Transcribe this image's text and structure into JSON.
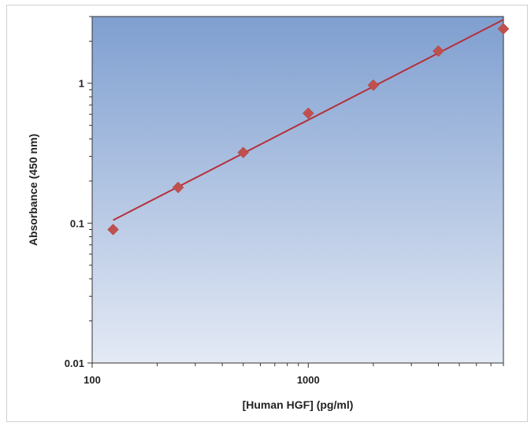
{
  "chart_data": {
    "type": "scatter",
    "xscale": "log",
    "yscale": "log",
    "xlabel": "[Human HGF] (pg/ml)",
    "ylabel": "Absorbance (450 nm)",
    "xlim": [
      100,
      8000
    ],
    "ylim": [
      0.01,
      3
    ],
    "xticks": [
      "100",
      "1000"
    ],
    "yticks": [
      "0.01",
      "0.1",
      "1"
    ],
    "grid": false,
    "legend": "none",
    "series": [
      {
        "x": [
          125,
          250,
          500,
          1000,
          2000,
          4000,
          8000
        ],
        "y": [
          0.09,
          0.18,
          0.32,
          0.61,
          0.97,
          1.7,
          2.45
        ]
      }
    ],
    "fit_line": {
      "x": [
        125,
        8000
      ],
      "y": [
        0.105,
        2.85
      ]
    },
    "colors": {
      "marker": "#c0504d",
      "fit_line": "#b5303a",
      "plot_bg_top": "#7f9fd0",
      "plot_bg_bottom": "#e4eaf5"
    }
  }
}
